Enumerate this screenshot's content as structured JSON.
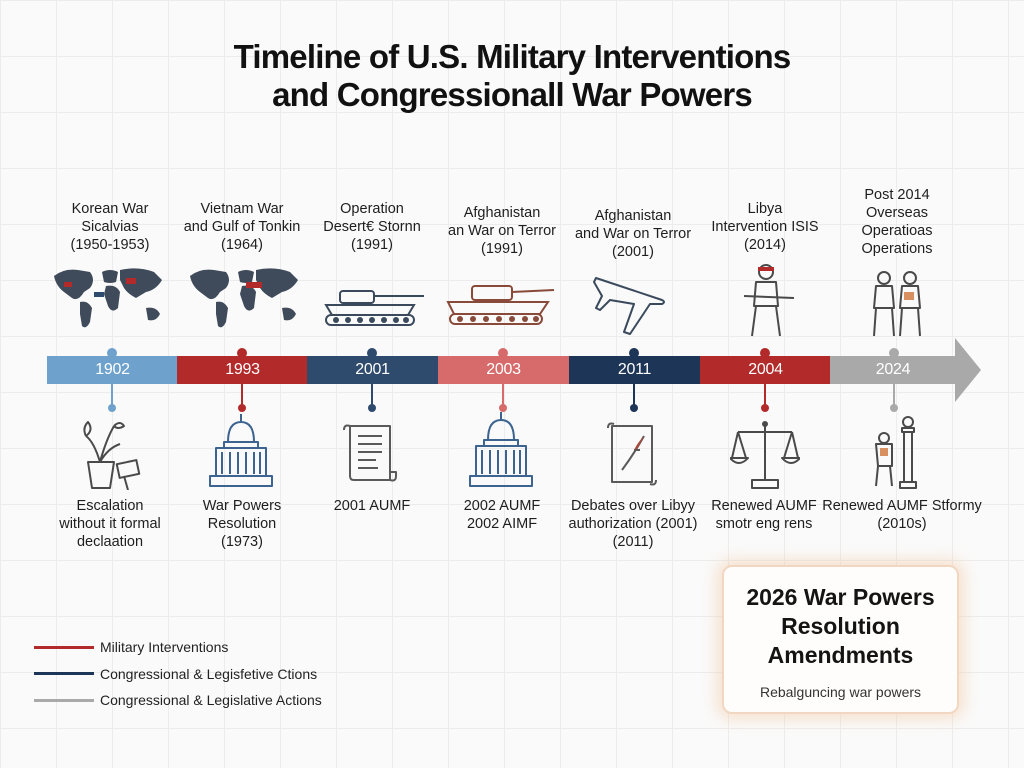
{
  "title": {
    "line1": "Timeline of U.S. Military Interventions",
    "line2": "and Congressionall War Powers"
  },
  "colors": {
    "blue": "#6ea2cc",
    "red": "#b22a2a",
    "navy": "#2e4a6c",
    "salmon": "#d76b6b",
    "dark_navy": "#1d3557",
    "gray": "#a9a9a9"
  },
  "interventions": [
    {
      "lines": [
        "Korean War",
        "Sicalvias",
        "(1950-1953)"
      ],
      "icon": "world-map-icon"
    },
    {
      "lines": [
        "Vietnam War",
        "and Gulf of Tonkin",
        "(1964)"
      ],
      "icon": "world-map-icon"
    },
    {
      "lines": [
        "Operation",
        "Desert€ Stornn",
        "(1991)"
      ],
      "icon": "tank-icon"
    },
    {
      "lines": [
        "Afghanistan",
        "an War on Terror",
        "(1991)"
      ],
      "icon": "tank-icon"
    },
    {
      "lines": [
        "Afghanistan",
        "and War on Terror",
        "(2001)"
      ],
      "icon": "jet-icon"
    },
    {
      "lines": [
        "Libya",
        "Intervention ISIS",
        "(2014)"
      ],
      "icon": "soldier-icon"
    },
    {
      "lines": [
        "Post 2014",
        "Overseas",
        "Operatioas",
        "Operations"
      ],
      "icon": "soldiers-icon"
    }
  ],
  "timeline": [
    {
      "label": "1902",
      "color": "#6ea2cc"
    },
    {
      "label": "1993",
      "color": "#b22a2a"
    },
    {
      "label": "2001",
      "color": "#2e4a6c"
    },
    {
      "label": "2003",
      "color": "#d76b6b"
    },
    {
      "label": "2011",
      "color": "#1d3557"
    },
    {
      "label": "2004",
      "color": "#b22a2a"
    },
    {
      "label": "2024",
      "color": "#a9a9a9"
    }
  ],
  "actions": [
    {
      "lines": [
        "Escalation",
        "without it formal",
        "declaation"
      ],
      "icon": "plant-protest-icon"
    },
    {
      "lines": [
        "War Powers",
        "Resolution",
        "(1973)"
      ],
      "icon": "capitol-icon"
    },
    {
      "lines": [
        "2001 AUMF"
      ],
      "icon": "scroll-icon"
    },
    {
      "lines": [
        "2002 AUMF",
        "2002 AIMF"
      ],
      "icon": "capitol-icon"
    },
    {
      "lines": [
        "Debates over Libyy",
        "authorization (2001)",
        "(2011)"
      ],
      "icon": "document-quill-icon"
    },
    {
      "lines": [
        "Renewed AUMF",
        "smotr eng rens"
      ],
      "icon": "scales-icon"
    },
    {
      "lines": [
        "Renewed AUMF Stformy",
        "(2010s)"
      ],
      "icon": "soldier-pillar-icon"
    }
  ],
  "legend": [
    {
      "label": "Military Interventions",
      "color": "#b22a2a"
    },
    {
      "label": "Congressional & Legisfetive Ctions",
      "color": "#1d3557"
    },
    {
      "label": "Congressional & Legislative Actions",
      "color": "#a9a9a9"
    }
  ],
  "callout": {
    "line1": "2026 War Powers",
    "line2": "Resolution",
    "line3": "Amendments",
    "subtitle": "Rebalguncing war powers"
  }
}
